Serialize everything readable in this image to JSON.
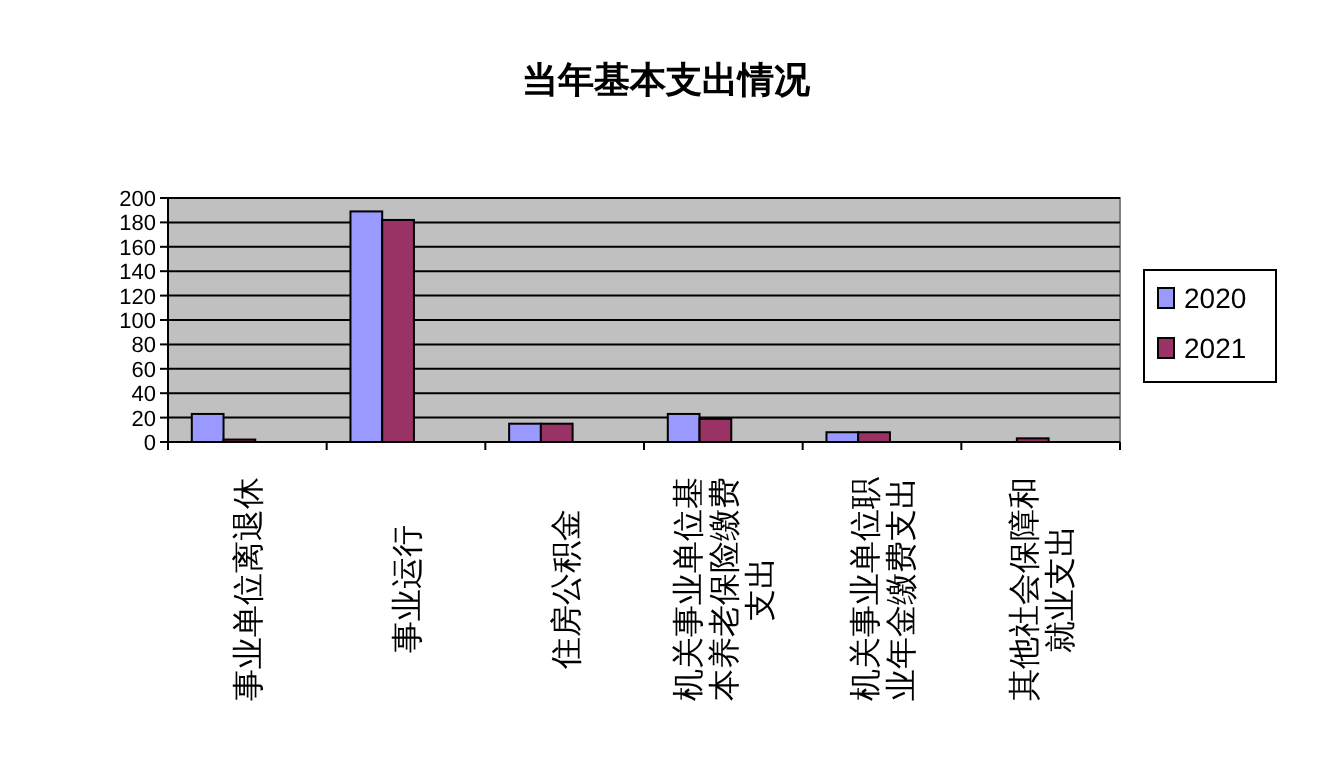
{
  "chart_data": {
    "type": "bar",
    "title": "当年基本支出情况",
    "categories": [
      "事业单位离退休",
      "事业运行",
      "住房公积金",
      "机关事业单位基本养老保险缴费支出",
      "机关事业单位职业年金缴费支出",
      "其他社会保障和就业支出"
    ],
    "series": [
      {
        "name": "2020",
        "color": "#9999ff",
        "values": [
          23,
          189,
          15,
          23,
          8,
          0
        ]
      },
      {
        "name": "2021",
        "color": "#993366",
        "values": [
          2,
          182,
          15,
          19,
          8,
          3
        ]
      }
    ],
    "ylim": [
      0,
      200
    ],
    "yticks": [
      0,
      20,
      40,
      60,
      80,
      100,
      120,
      140,
      160,
      180,
      200
    ],
    "grid": "y",
    "legend": "right"
  }
}
